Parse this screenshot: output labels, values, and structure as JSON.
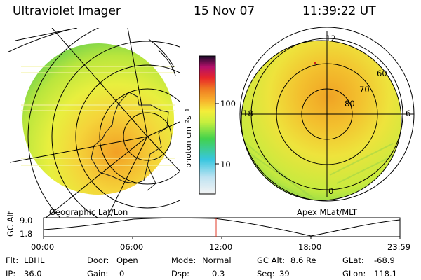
{
  "header": {
    "title": "Ultraviolet Imager",
    "date": "15 Nov 07",
    "time": "11:39:22 UT"
  },
  "colorbar": {
    "axis_label": "photon cm⁻²s⁻¹",
    "ticks": [
      "100",
      "10"
    ],
    "scale": "log"
  },
  "left_panel": {
    "caption": "Geographic Lat/Lon"
  },
  "right_panel": {
    "caption": "Apex MLat/MLT",
    "mlt_labels": [
      "12",
      "18",
      "6",
      "0"
    ],
    "mlat_labels": [
      "60",
      "70",
      "80"
    ]
  },
  "altitude_plot": {
    "ylabel": "GC Alt",
    "yticks": [
      "9.0",
      "1.8"
    ],
    "xticks": [
      "00:00",
      "06:00",
      "12:00",
      "18:00",
      "23:59"
    ],
    "marker_color": "#e23b2a",
    "marker_time": "11:39"
  },
  "info": {
    "flt_label": "Flt:",
    "flt_value": "LBHL",
    "ip_label": "IP:",
    "ip_value": "36.0",
    "door_label": "Door:",
    "door_value": "Open",
    "gain_label": "Gain:",
    "gain_value": "0",
    "mode_label": "Mode:",
    "mode_value": "Normal",
    "dsp_label": "Dsp:",
    "dsp_value": "0.3",
    "gcalt_label": "GC Alt:",
    "gcalt_value": "8.6 Re",
    "seq_label": "Seq:",
    "seq_value": "39",
    "glat_label": "GLat:",
    "glat_value": "-68.9",
    "glon_label": "GLon:",
    "glon_value": "118.1"
  }
}
